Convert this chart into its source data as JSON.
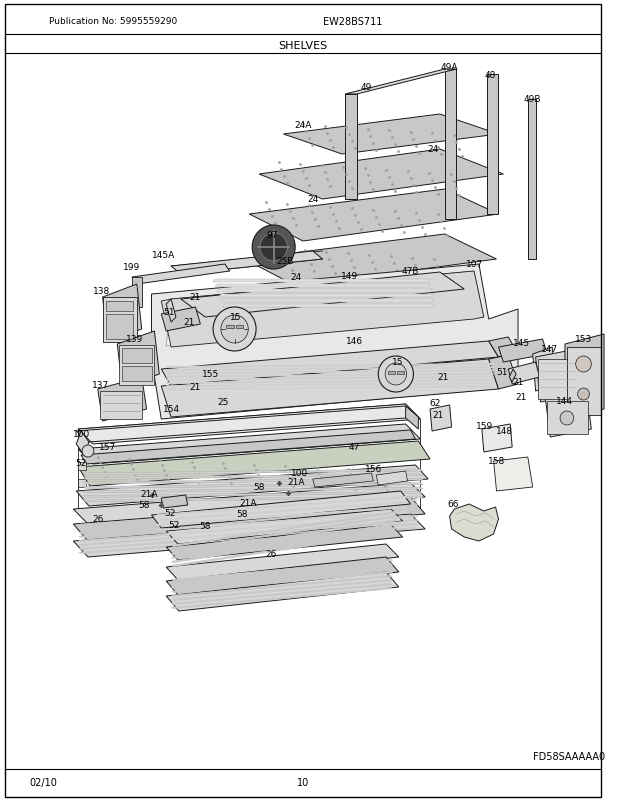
{
  "title": "SHELVES",
  "model": "EW28BS711",
  "publication": "Publication No: 5995559290",
  "diagram_code": "FD58SAAAAA0",
  "date": "02/10",
  "page": "10",
  "background_color": "#ffffff",
  "border_color": "#000000",
  "text_color": "#000000",
  "lc": "#1a1a1a",
  "gray1": "#b0b0b0",
  "gray2": "#c8c8c8",
  "gray3": "#d8d8d8",
  "gray4": "#e8e8e8",
  "dark_gray": "#707070",
  "very_dark": "#404040"
}
